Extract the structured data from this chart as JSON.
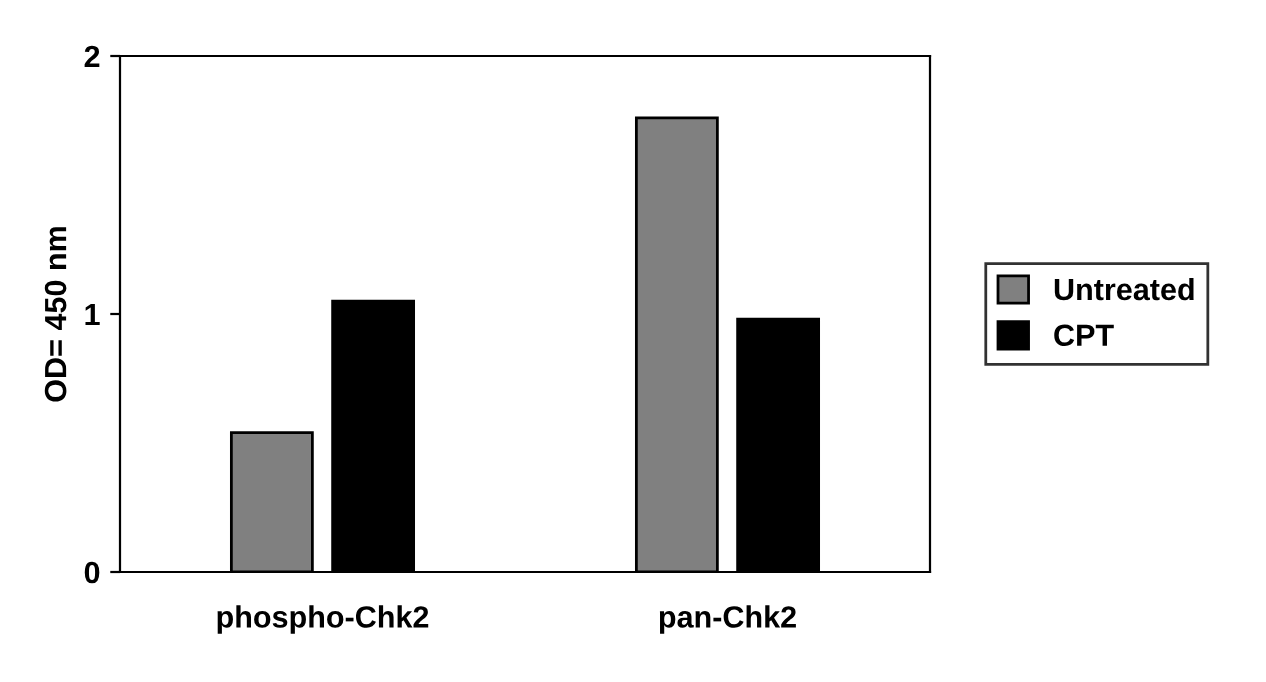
{
  "chart_data": {
    "type": "bar",
    "ylabel": "OD= 450 nm",
    "categories": [
      "phospho-Chk2",
      "pan-Chk2"
    ],
    "series": [
      {
        "name": "Untreated",
        "color": "#808080",
        "values": [
          0.54,
          1.76
        ]
      },
      {
        "name": "CPT",
        "color": "#000000",
        "values": [
          1.05,
          0.98
        ]
      }
    ],
    "ylim": [
      0,
      2
    ],
    "yticks": [
      0,
      1,
      2
    ],
    "grid": false,
    "legend": "right"
  }
}
